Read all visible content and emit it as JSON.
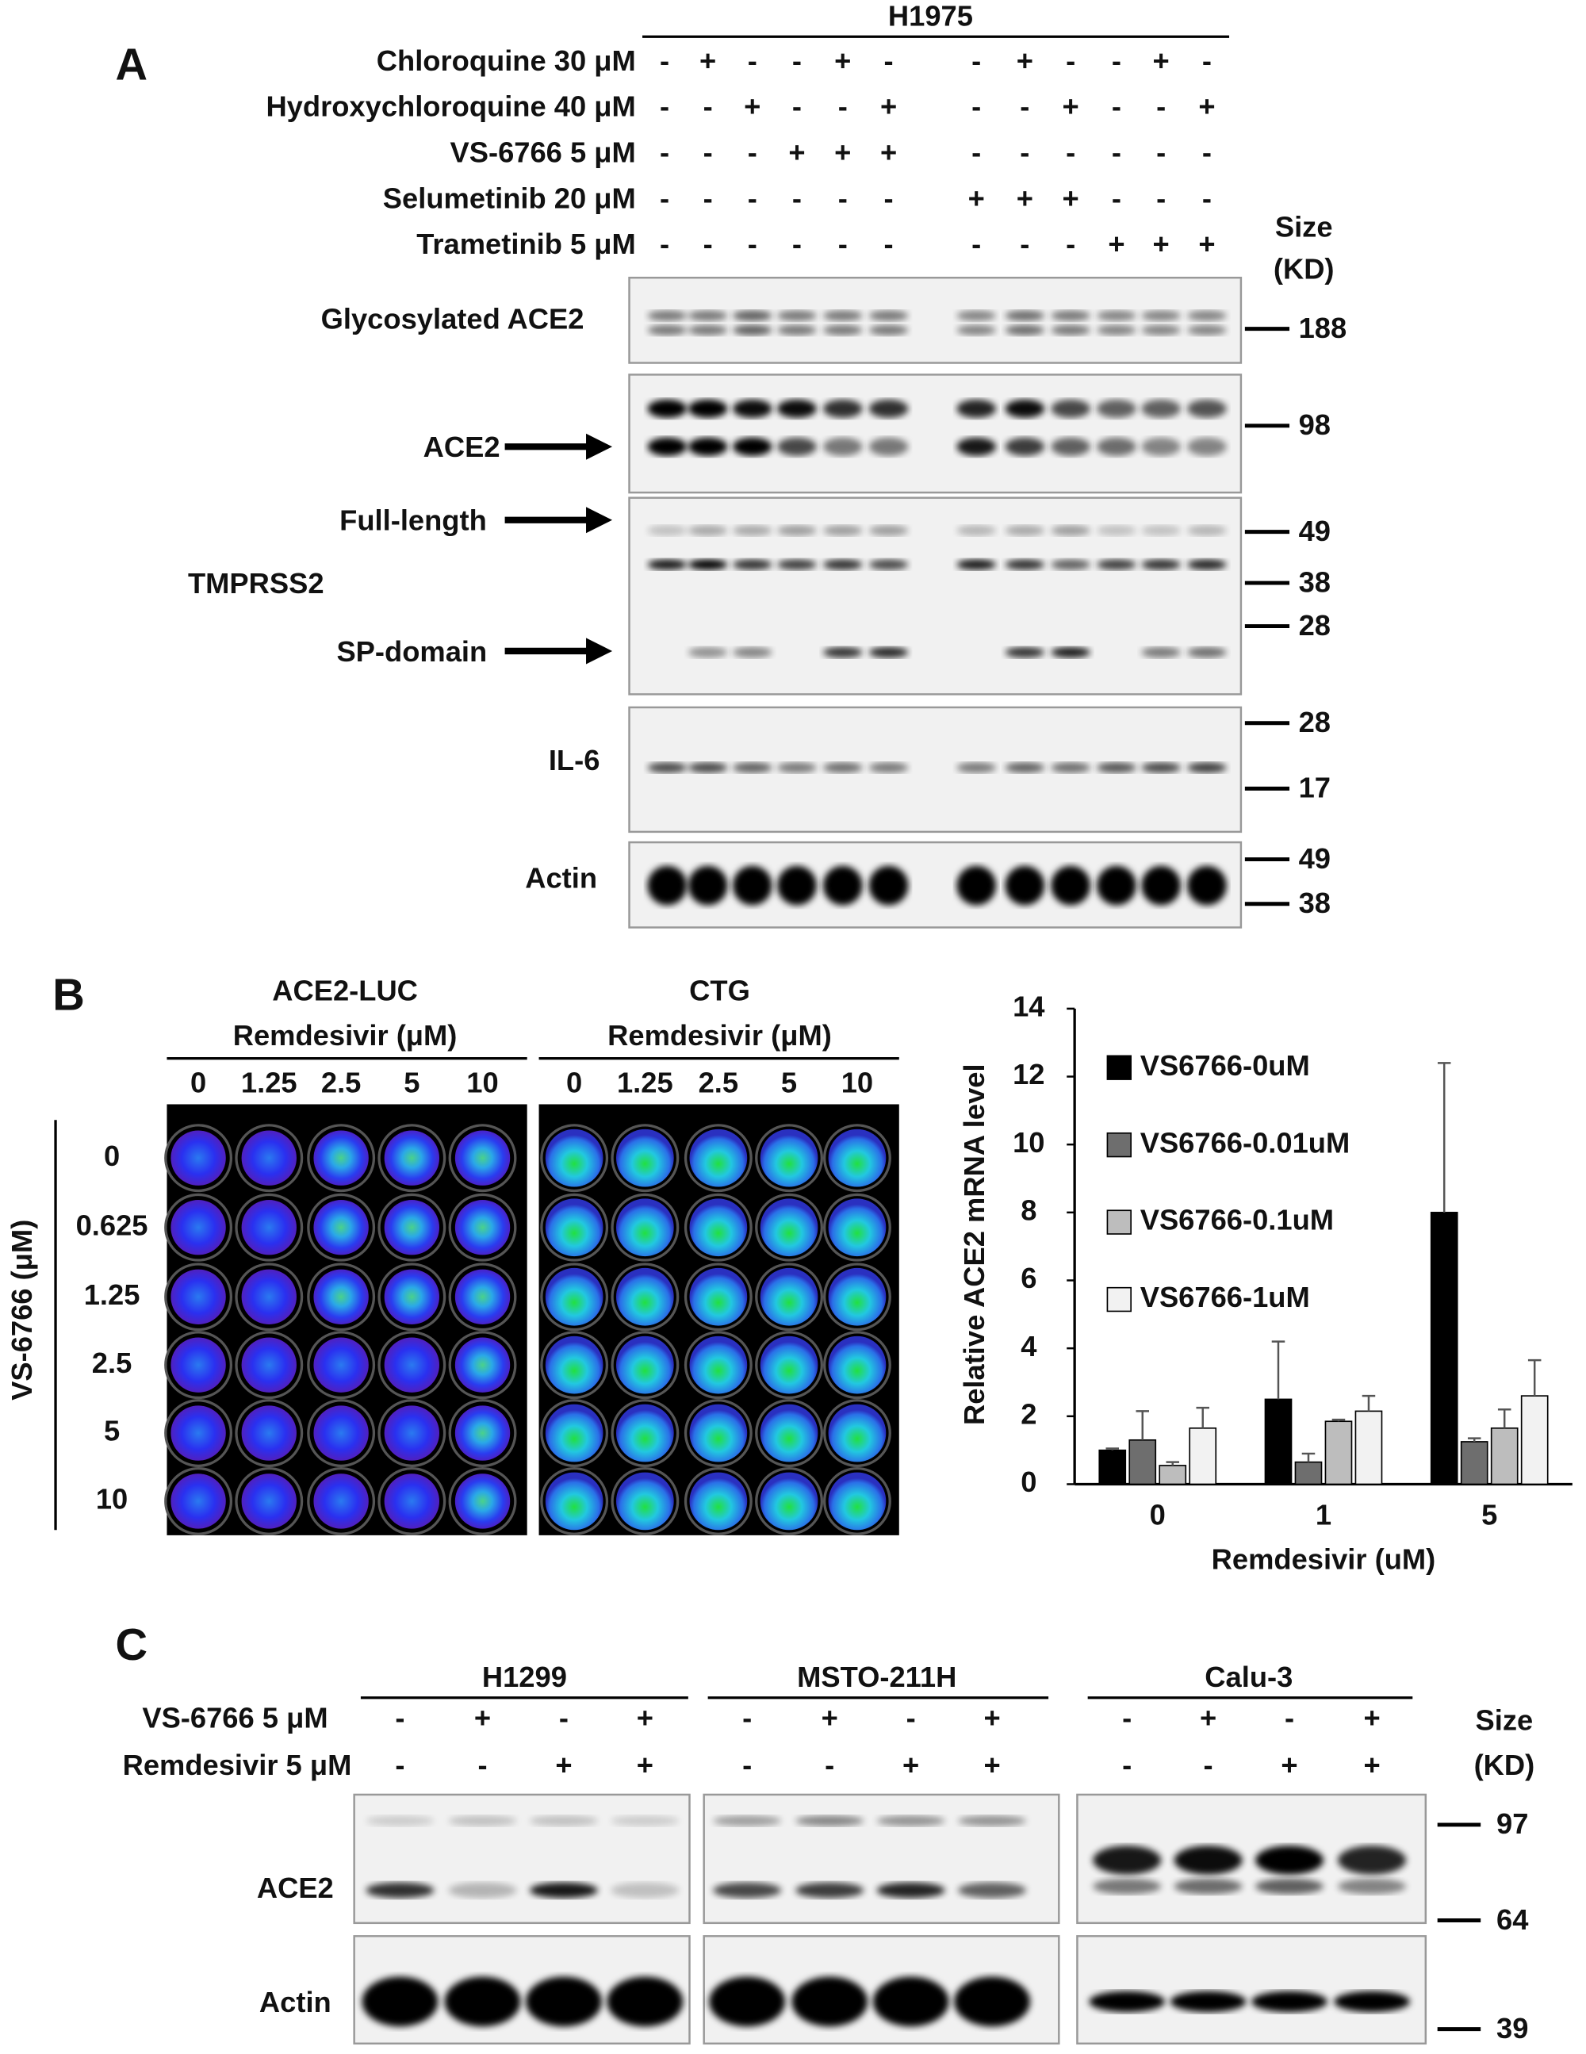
{
  "panel_a": {
    "label": "A",
    "cell_line": "H1975",
    "treatments": [
      {
        "name": "Chloroquine 30 μM",
        "signs": [
          "-",
          "+",
          "-",
          "-",
          "+",
          "-",
          "-",
          "+",
          "-",
          "-",
          "+",
          "-"
        ]
      },
      {
        "name": "Hydroxychloroquine 40 μM",
        "signs": [
          "-",
          "-",
          "+",
          "-",
          "-",
          "+",
          "-",
          "-",
          "+",
          "-",
          "-",
          "+"
        ]
      },
      {
        "name": "VS-6766 5 μM",
        "signs": [
          "-",
          "-",
          "-",
          "+",
          "+",
          "+",
          "-",
          "-",
          "-",
          "-",
          "-",
          "-"
        ]
      },
      {
        "name": "Selumetinib 20 μM",
        "signs": [
          "-",
          "-",
          "-",
          "-",
          "-",
          "-",
          "+",
          "+",
          "+",
          "-",
          "-",
          "-"
        ]
      },
      {
        "name": "Trametinib 5 μM",
        "signs": [
          "-",
          "-",
          "-",
          "-",
          "-",
          "-",
          "-",
          "-",
          "-",
          "+",
          "+",
          "+"
        ]
      }
    ],
    "size_header": [
      "Size",
      "(KD)"
    ],
    "blot_labels": [
      "Glycosylated ACE2",
      "ACE2",
      "Full-length",
      "TMPRSS2",
      "SP-domain",
      "IL-6",
      "Actin"
    ],
    "markers": [
      "188",
      "98",
      "49",
      "38",
      "28",
      "28",
      "17",
      "49",
      "38"
    ]
  },
  "panel_b": {
    "label": "B",
    "assays": [
      {
        "name": "ACE2-LUC",
        "subtitle": "Remdesivir (μM)",
        "columns": [
          "0",
          "1.25",
          "2.5",
          "5",
          "10"
        ]
      },
      {
        "name": "CTG",
        "subtitle": "Remdesivir (μM)",
        "columns": [
          "0",
          "1.25",
          "2.5",
          "5",
          "10"
        ]
      }
    ],
    "row_title": "VS-6766 (μM)",
    "rows": [
      "0",
      "0.625",
      "1.25",
      "2.5",
      "5",
      "10"
    ]
  },
  "chart_data": {
    "type": "bar",
    "x_label": "Remdesivir (uM)",
    "y_label": "Relative ACE2 mRNA level",
    "categories": [
      "0",
      "1",
      "5"
    ],
    "series": [
      {
        "name": "VS6766-0uM",
        "color": "#000000",
        "values": [
          1.0,
          2.5,
          8.0
        ],
        "errors": [
          0.05,
          1.7,
          4.4
        ]
      },
      {
        "name": "VS6766-0.01uM",
        "color": "#6e6e6e",
        "values": [
          1.3,
          0.65,
          1.25
        ],
        "errors": [
          0.85,
          0.25,
          0.1
        ]
      },
      {
        "name": "VS6766-0.1uM",
        "color": "#bdbdbd",
        "values": [
          0.55,
          1.85,
          1.65
        ],
        "errors": [
          0.1,
          0.05,
          0.55
        ]
      },
      {
        "name": "VS6766-1uM",
        "color": "#f2f2f2",
        "values": [
          1.65,
          2.15,
          2.6
        ],
        "errors": [
          0.6,
          0.45,
          1.05
        ]
      }
    ],
    "ylim": [
      0,
      14
    ],
    "yticks": [
      0,
      2,
      4,
      6,
      8,
      10,
      12,
      14
    ]
  },
  "panel_c": {
    "label": "C",
    "cell_lines": [
      "H1299",
      "MSTO-211H",
      "Calu-3"
    ],
    "treatments": [
      {
        "name": "VS-6766 5 μM",
        "signs": [
          "-",
          "+",
          "-",
          "+"
        ]
      },
      {
        "name": "Remdesivir 5 μM",
        "signs": [
          "-",
          "-",
          "+",
          "+"
        ]
      }
    ],
    "size_header": [
      "Size",
      "(KD)"
    ],
    "blot_labels": [
      "ACE2",
      "Actin"
    ],
    "markers": [
      "97",
      "64",
      "39"
    ]
  }
}
